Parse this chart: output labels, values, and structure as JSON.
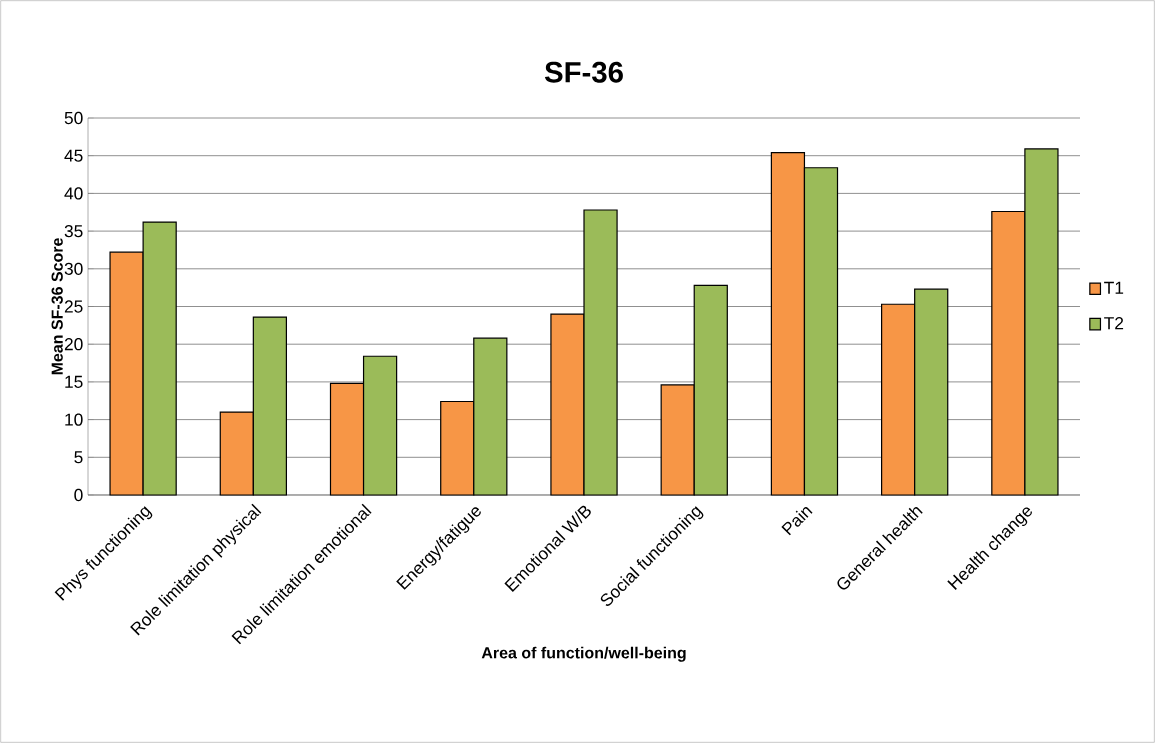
{
  "chart_data": {
    "type": "bar",
    "title": "SF-36",
    "xlabel": "Area of function/well-being",
    "ylabel": "Mean SF-36 Score",
    "categories": [
      "Phys functioning",
      "Role limitation physical",
      "Role limitation emotional",
      "Energy/fatigue",
      "Emotional W/B",
      "Social functioning",
      "Pain",
      "General health",
      "Health change"
    ],
    "series": [
      {
        "name": "T1",
        "color": "#f79646",
        "values": [
          32.2,
          11.0,
          14.8,
          12.4,
          24.0,
          14.6,
          45.4,
          25.3,
          37.6
        ]
      },
      {
        "name": "T2",
        "color": "#9bbb59",
        "values": [
          36.2,
          23.6,
          18.4,
          20.8,
          37.8,
          27.8,
          43.4,
          27.3,
          45.9
        ]
      }
    ],
    "ylim": [
      0,
      50
    ],
    "yticks": [
      0,
      5,
      10,
      15,
      20,
      25,
      30,
      35,
      40,
      45,
      50
    ],
    "grid": "y",
    "legend": "right"
  }
}
